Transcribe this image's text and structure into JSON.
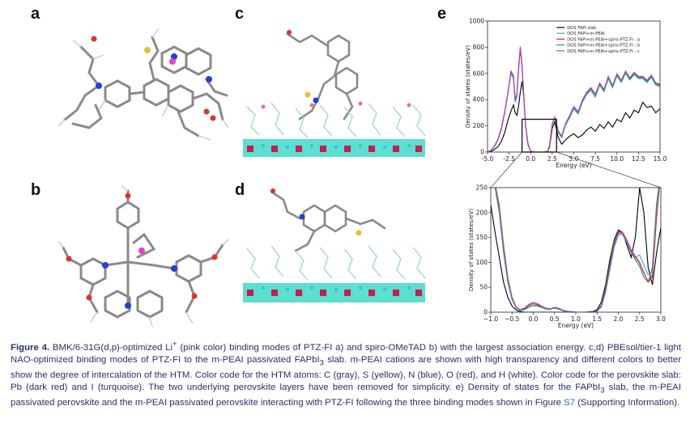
{
  "panels": {
    "a": "a",
    "b": "b",
    "c": "c",
    "d": "d",
    "e": "e"
  },
  "caption": {
    "lead": "Figure 4.",
    "s1": " BMK/6-31G(d,p)-optimized Li",
    "s1_sup": "+",
    "s2": " (pink color) binding modes of PTZ-FI a) and spiro-OMeTAD b) with the largest association energy. c,d) PBEsol/tier-1 light NAO-optimized binding modes of PTZ-FI to the m-PEAI passivated FAPbI",
    "s2_sub": "3",
    "s3": " slab. m-PEAI cations are shown with high transparency and different colors to better show the degree of intercalation of the HTM. Color code for the HTM atoms: C (gray), S (yellow), N (blue), O (red), and H (white). Color code for the perovskite slab: Pb (dark red) and I (turquoise). The two underlying perovskite layers have been removed for simplicity. e) Density of states for the FAPbI",
    "s3_sub": "3",
    "s4": " slab, the m-PEAI passivated perovskite and the m-PEAI passivated perovskite interacting with PTZ-FI following the three binding modes shown in Figure ",
    "s4_link": "S7",
    "s5": " (Supporting Information)."
  },
  "chart_data": [
    {
      "type": "line",
      "xlabel": "Energy (eV)",
      "ylabel": "Density of states (states/eV)",
      "xlim": [
        -5.0,
        15.0
      ],
      "ylim": [
        0,
        1000
      ],
      "xticks": [
        "-5.0",
        "-2.5",
        "0.0",
        "2.5",
        "5.0",
        "7.5",
        "10.0",
        "12.5",
        "15.0"
      ],
      "yticks": [
        "0",
        "200",
        "400",
        "600",
        "800",
        "1000"
      ],
      "legend_position": "top-right",
      "series": [
        {
          "name": "DOS FAPI slab",
          "color": "#000000",
          "x": [
            -5.0,
            -4.6,
            -4.2,
            -3.8,
            -3.4,
            -3.0,
            -2.6,
            -2.3,
            -2.0,
            -1.8,
            -1.6,
            -1.4,
            -1.2,
            -1.0,
            -0.8,
            -0.6,
            -0.3,
            0.0,
            0.4,
            0.8,
            1.2,
            1.6,
            2.0,
            2.2,
            2.5,
            2.8,
            3.2,
            3.6,
            4.0,
            4.5,
            5.0,
            5.5,
            6.0,
            6.5,
            7.0,
            7.5,
            8.0,
            8.5,
            9.0,
            9.5,
            10.0,
            10.5,
            11.0,
            11.5,
            12.0,
            12.5,
            13.0,
            13.5,
            14.0,
            14.5,
            15.0
          ],
          "y": [
            0,
            5,
            20,
            40,
            80,
            150,
            250,
            310,
            360,
            300,
            280,
            350,
            460,
            540,
            420,
            200,
            60,
            5,
            0,
            0,
            0,
            0,
            5,
            40,
            180,
            230,
            110,
            60,
            90,
            120,
            140,
            110,
            130,
            170,
            190,
            160,
            210,
            180,
            230,
            190,
            250,
            230,
            300,
            260,
            320,
            300,
            380,
            340,
            350,
            300,
            330
          ]
        },
        {
          "name": "DOS FAPI+m-PEAI",
          "color": "#3da1e6",
          "x": [
            -5.0,
            -4.6,
            -4.2,
            -3.8,
            -3.4,
            -3.0,
            -2.6,
            -2.3,
            -2.0,
            -1.8,
            -1.6,
            -1.4,
            -1.2,
            -1.0,
            -0.8,
            -0.6,
            -0.3,
            0.0,
            0.4,
            0.8,
            1.2,
            1.6,
            2.0,
            2.2,
            2.5,
            2.8,
            3.2,
            3.6,
            4.0,
            4.5,
            5.0,
            5.5,
            6.0,
            6.5,
            7.0,
            7.5,
            8.0,
            8.5,
            9.0,
            9.5,
            10.0,
            10.5,
            11.0,
            11.5,
            12.0,
            12.5,
            13.0,
            13.5,
            14.0,
            14.5,
            15.0
          ],
          "y": [
            0,
            10,
            40,
            90,
            170,
            300,
            460,
            600,
            560,
            380,
            420,
            620,
            790,
            640,
            420,
            200,
            50,
            5,
            0,
            0,
            0,
            0,
            5,
            50,
            210,
            260,
            150,
            110,
            200,
            260,
            330,
            290,
            380,
            440,
            470,
            420,
            510,
            460,
            560,
            490,
            580,
            530,
            600,
            550,
            590,
            560,
            560,
            530,
            570,
            510,
            500
          ]
        },
        {
          "name": "DOS FAPI+m-PEAI+spiro-PTZ-FI - a",
          "color": "#d62728",
          "x": [
            -5.0,
            -4.6,
            -4.2,
            -3.8,
            -3.4,
            -3.0,
            -2.6,
            -2.3,
            -2.0,
            -1.8,
            -1.6,
            -1.4,
            -1.2,
            -1.0,
            -0.8,
            -0.6,
            -0.3,
            0.0,
            0.4,
            0.8,
            1.2,
            1.6,
            2.0,
            2.2,
            2.5,
            2.8,
            3.2,
            3.6,
            4.0,
            4.5,
            5.0,
            5.5,
            6.0,
            6.5,
            7.0,
            7.5,
            8.0,
            8.5,
            9.0,
            9.5,
            10.0,
            10.5,
            11.0,
            11.5,
            12.0,
            12.5,
            13.0,
            13.5,
            14.0,
            14.5,
            15.0
          ],
          "y": [
            0,
            12,
            45,
            95,
            180,
            310,
            470,
            615,
            580,
            395,
            440,
            640,
            800,
            660,
            440,
            210,
            55,
            6,
            0,
            0,
            0,
            0,
            6,
            55,
            215,
            265,
            160,
            120,
            210,
            275,
            345,
            305,
            395,
            455,
            490,
            440,
            525,
            475,
            575,
            505,
            595,
            545,
            615,
            565,
            605,
            575,
            575,
            545,
            585,
            525,
            515
          ]
        },
        {
          "name": "DOS FAPI+m-PEAI+spiro-PTZ-FI - b",
          "color": "#2ca02c",
          "x": [
            -5.0,
            -4.6,
            -4.2,
            -3.8,
            -3.4,
            -3.0,
            -2.6,
            -2.3,
            -2.0,
            -1.8,
            -1.6,
            -1.4,
            -1.2,
            -1.0,
            -0.8,
            -0.6,
            -0.3,
            0.0,
            0.4,
            0.8,
            1.2,
            1.6,
            2.0,
            2.2,
            2.5,
            2.8,
            3.2,
            3.6,
            4.0,
            4.5,
            5.0,
            5.5,
            6.0,
            6.5,
            7.0,
            7.5,
            8.0,
            8.5,
            9.0,
            9.5,
            10.0,
            10.5,
            11.0,
            11.5,
            12.0,
            12.5,
            13.0,
            13.5,
            14.0,
            14.5,
            15.0
          ],
          "y": [
            0,
            11,
            42,
            92,
            175,
            305,
            465,
            610,
            575,
            390,
            432,
            632,
            795,
            652,
            432,
            205,
            52,
            5,
            0,
            0,
            0,
            0,
            5,
            52,
            212,
            262,
            155,
            115,
            205,
            268,
            338,
            298,
            388,
            448,
            482,
            432,
            518,
            468,
            568,
            498,
            588,
            538,
            608,
            558,
            598,
            568,
            568,
            538,
            578,
            518,
            508
          ]
        },
        {
          "name": "DOS FAPI+m-PEAI+spiro-PTZ-FI - c",
          "color": "#b83dc4",
          "x": [
            -5.0,
            -4.6,
            -4.2,
            -3.8,
            -3.4,
            -3.0,
            -2.6,
            -2.3,
            -2.0,
            -1.8,
            -1.6,
            -1.4,
            -1.2,
            -1.0,
            -0.8,
            -0.6,
            -0.3,
            0.0,
            0.4,
            0.8,
            1.2,
            1.6,
            2.0,
            2.2,
            2.5,
            2.8,
            3.2,
            3.6,
            4.0,
            4.5,
            5.0,
            5.5,
            6.0,
            6.5,
            7.0,
            7.5,
            8.0,
            8.5,
            9.0,
            9.5,
            10.0,
            10.5,
            11.0,
            11.5,
            12.0,
            12.5,
            13.0,
            13.5,
            14.0,
            14.5,
            15.0
          ],
          "y": [
            0,
            13,
            46,
            97,
            182,
            312,
            472,
            618,
            585,
            398,
            445,
            645,
            805,
            665,
            445,
            212,
            56,
            6,
            0,
            0,
            0,
            0,
            6,
            56,
            218,
            268,
            162,
            122,
            212,
            278,
            348,
            308,
            398,
            458,
            492,
            442,
            528,
            478,
            578,
            508,
            598,
            548,
            618,
            568,
            608,
            578,
            578,
            548,
            588,
            528,
            518
          ]
        }
      ]
    },
    {
      "type": "line",
      "xlabel": "Energy (eV)",
      "ylabel": "Density of states (states/eV)",
      "xlim": [
        -1.0,
        3.0
      ],
      "ylim": [
        0,
        250
      ],
      "xticks": [
        "−1.0",
        "−0.5",
        "0.0",
        "0.5",
        "1.0",
        "1.5",
        "2.0",
        "2.5",
        "3.0"
      ],
      "yticks": [
        "0",
        "50",
        "100",
        "150",
        "200",
        "250"
      ],
      "series": [
        {
          "name": "DOS FAPI slab",
          "color": "#000000",
          "x": [
            -1.0,
            -0.9,
            -0.8,
            -0.7,
            -0.6,
            -0.5,
            -0.4,
            -0.3,
            -0.2,
            -0.1,
            0.0,
            0.2,
            0.4,
            0.6,
            0.8,
            1.0,
            1.2,
            1.4,
            1.5,
            1.6,
            1.7,
            1.8,
            1.9,
            2.0,
            2.1,
            2.2,
            2.3,
            2.4,
            2.5,
            2.6,
            2.7,
            2.8,
            2.9,
            3.0
          ],
          "y": [
            215,
            160,
            110,
            60,
            30,
            12,
            4,
            1,
            0,
            0,
            0,
            0,
            0,
            0,
            0,
            0,
            0,
            1,
            5,
            20,
            55,
            105,
            145,
            165,
            160,
            135,
            110,
            150,
            250,
            200,
            90,
            55,
            120,
            170
          ]
        },
        {
          "name": "DOS FAPI+m-PEAI",
          "color": "#3da1e6",
          "x": [
            -1.0,
            -0.9,
            -0.8,
            -0.7,
            -0.6,
            -0.5,
            -0.4,
            -0.3,
            -0.2,
            -0.1,
            0.0,
            0.1,
            0.2,
            0.3,
            0.4,
            0.5,
            0.6,
            0.7,
            0.8,
            1.0,
            1.2,
            1.4,
            1.5,
            1.6,
            1.7,
            1.8,
            1.9,
            2.0,
            2.1,
            2.2,
            2.3,
            2.4,
            2.5,
            2.6,
            2.7,
            2.8,
            2.9,
            3.0
          ],
          "y": [
            260,
            250,
            200,
            120,
            60,
            25,
            8,
            3,
            5,
            10,
            13,
            12,
            9,
            6,
            6,
            10,
            8,
            4,
            2,
            0,
            0,
            0,
            2,
            10,
            40,
            85,
            130,
            155,
            155,
            140,
            120,
            110,
            115,
            95,
            75,
            80,
            200,
            280
          ]
        },
        {
          "name": "DOS FAPI+m-PEAI+spiro-PTZ-FI - a",
          "color": "#d62728",
          "x": [
            -1.0,
            -0.9,
            -0.8,
            -0.7,
            -0.6,
            -0.5,
            -0.4,
            -0.3,
            -0.2,
            -0.1,
            0.0,
            0.1,
            0.2,
            0.3,
            0.4,
            0.5,
            0.6,
            0.7,
            0.8,
            1.0,
            1.2,
            1.4,
            1.5,
            1.6,
            1.7,
            1.8,
            1.9,
            2.0,
            2.1,
            2.2,
            2.3,
            2.4,
            2.5,
            2.6,
            2.7,
            2.8,
            2.9,
            3.0
          ],
          "y": [
            260,
            255,
            205,
            125,
            65,
            28,
            10,
            4,
            7,
            14,
            17,
            15,
            11,
            7,
            6,
            9,
            7,
            3,
            1,
            0,
            0,
            0,
            2,
            12,
            45,
            92,
            138,
            162,
            160,
            145,
            125,
            112,
            100,
            80,
            60,
            70,
            190,
            280
          ]
        },
        {
          "name": "DOS FAPI+m-PEAI+spiro-PTZ-FI - b",
          "color": "#2ca02c",
          "x": [
            -1.0,
            -0.9,
            -0.8,
            -0.7,
            -0.6,
            -0.5,
            -0.4,
            -0.3,
            -0.2,
            -0.1,
            0.0,
            0.1,
            0.2,
            0.3,
            0.4,
            0.5,
            0.6,
            0.7,
            0.8,
            1.0,
            1.2,
            1.4,
            1.5,
            1.6,
            1.7,
            1.8,
            1.9,
            2.0,
            2.1,
            2.2,
            2.3,
            2.4,
            2.5,
            2.6,
            2.7,
            2.8,
            2.9,
            3.0
          ],
          "y": [
            260,
            258,
            215,
            135,
            70,
            30,
            10,
            4,
            6,
            11,
            14,
            13,
            10,
            7,
            6,
            8,
            6,
            3,
            1,
            0,
            0,
            0,
            3,
            14,
            48,
            96,
            142,
            160,
            158,
            143,
            120,
            105,
            92,
            70,
            60,
            90,
            220,
            280
          ]
        },
        {
          "name": "DOS FAPI+m-PEAI+spiro-PTZ-FI - c",
          "color": "#b83dc4",
          "x": [
            -1.0,
            -0.9,
            -0.8,
            -0.7,
            -0.6,
            -0.5,
            -0.4,
            -0.3,
            -0.2,
            -0.1,
            0.0,
            0.1,
            0.2,
            0.3,
            0.4,
            0.5,
            0.6,
            0.7,
            0.8,
            1.0,
            1.2,
            1.4,
            1.5,
            1.6,
            1.7,
            1.8,
            1.9,
            2.0,
            2.1,
            2.2,
            2.3,
            2.4,
            2.5,
            2.6,
            2.7,
            2.8,
            2.9,
            3.0
          ],
          "y": [
            260,
            252,
            202,
            122,
            62,
            26,
            9,
            5,
            9,
            16,
            20,
            17,
            12,
            8,
            7,
            9,
            7,
            3,
            1,
            0,
            0,
            0,
            2,
            11,
            42,
            88,
            134,
            158,
            158,
            143,
            123,
            110,
            98,
            78,
            62,
            75,
            195,
            280
          ]
        }
      ]
    }
  ]
}
